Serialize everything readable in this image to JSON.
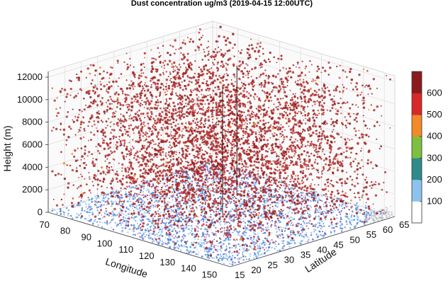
{
  "chart_data": {
    "type": "scatter",
    "title": "Dust concentration ug/m3 (2019-04-15 12:00UTC)",
    "xlabel": "Longitude",
    "ylabel": "Latitude",
    "zlabel": "Height (m)",
    "x_ticks": [
      70,
      80,
      90,
      100,
      110,
      120,
      130,
      140,
      150
    ],
    "y_ticks": [
      15,
      20,
      25,
      30,
      35,
      40,
      45,
      50,
      55,
      60,
      65
    ],
    "z_ticks": [
      0,
      2000,
      4000,
      6000,
      8000,
      10000,
      12000
    ],
    "xlim": [
      68,
      155
    ],
    "ylim": [
      15,
      65
    ],
    "zlim": [
      0,
      12500
    ],
    "colorbar": {
      "ticks": [
        100,
        200,
        300,
        400,
        500,
        600
      ],
      "range": [
        0,
        700
      ],
      "colors": [
        "#ffffff",
        "#8cc3ee",
        "#2e8b8b",
        "#7fbf3f",
        "#f08a2a",
        "#d82828",
        "#8b1a1a"
      ]
    },
    "grid": true,
    "dominant_color": "#a52a2a"
  }
}
